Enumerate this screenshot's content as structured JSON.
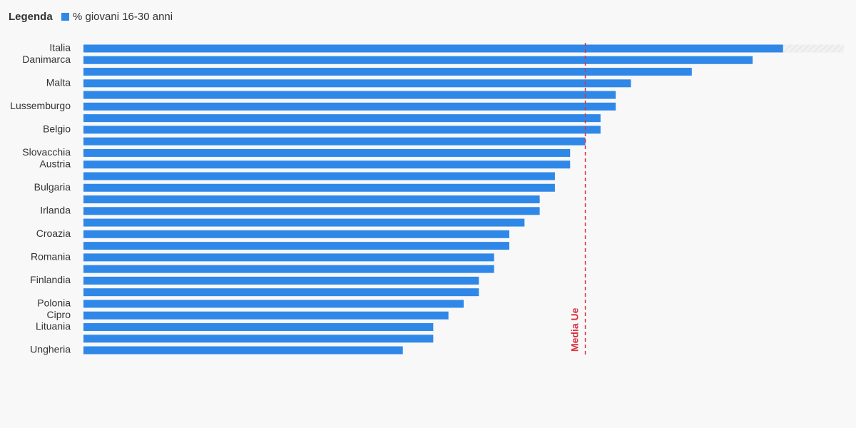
{
  "chart_data": {
    "type": "bar",
    "orientation": "horizontal",
    "legend_title": "Legenda",
    "categories": [
      "Italia",
      "Danimarca",
      null,
      "Malta",
      null,
      "Lussemburgo",
      null,
      "Belgio",
      null,
      "Slovacchia",
      "Austria",
      null,
      "Bulgaria",
      null,
      "Irlanda",
      null,
      "Croazia",
      null,
      "Romania",
      null,
      "Finlandia",
      null,
      "Polonia",
      "Cipro",
      "Lituania",
      null,
      "Ungheria"
    ],
    "series": [
      {
        "name": "% giovani 16-30 anni",
        "color": "#2f88e8",
        "values": [
          46,
          44,
          40,
          36,
          35,
          35,
          34,
          34,
          33,
          32,
          32,
          31,
          31,
          30,
          30,
          29,
          28,
          28,
          27,
          27,
          26,
          26,
          25,
          24,
          23,
          23,
          21
        ]
      }
    ],
    "xlim": [
      0,
      50
    ],
    "reference_line": {
      "label": "Media Ue",
      "value": 33,
      "color": "#d9343f"
    }
  }
}
